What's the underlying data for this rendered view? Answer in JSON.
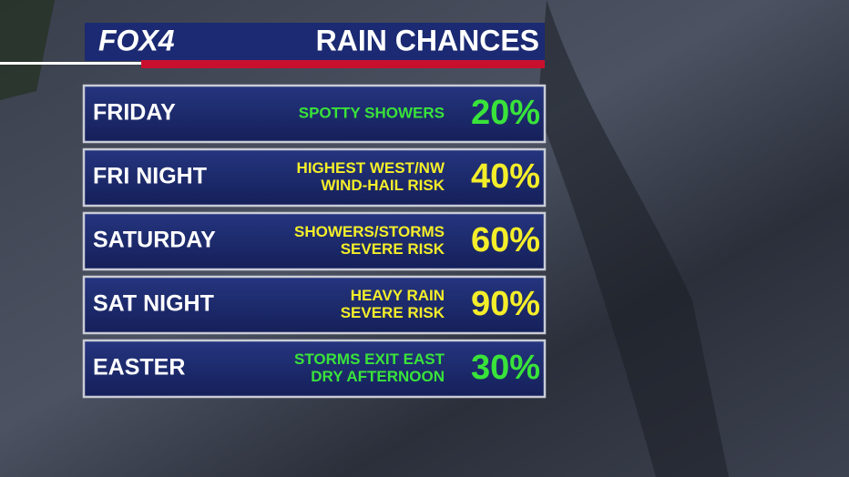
{
  "header": {
    "logo": "FOX4",
    "title": "RAIN CHANCES"
  },
  "rows": [
    {
      "day": "FRIDAY",
      "details": [
        "SPOTTY SHOWERS"
      ],
      "chance": "20%",
      "color": "#39e33a"
    },
    {
      "day": "FRI NIGHT",
      "details": [
        "HIGHEST WEST/NW",
        "WIND-HAIL RISK"
      ],
      "chance": "40%",
      "color": "#f4ee2a"
    },
    {
      "day": "SATURDAY",
      "details": [
        "SHOWERS/STORMS",
        "SEVERE RISK"
      ],
      "chance": "60%",
      "color": "#f4ee2a"
    },
    {
      "day": "SAT NIGHT",
      "details": [
        "HEAVY RAIN",
        "SEVERE RISK"
      ],
      "chance": "90%",
      "color": "#f4ee2a"
    },
    {
      "day": "EASTER",
      "details": [
        "STORMS EXIT EAST",
        "DRY AFTERNOON"
      ],
      "chance": "30%",
      "color": "#39e33a"
    }
  ]
}
